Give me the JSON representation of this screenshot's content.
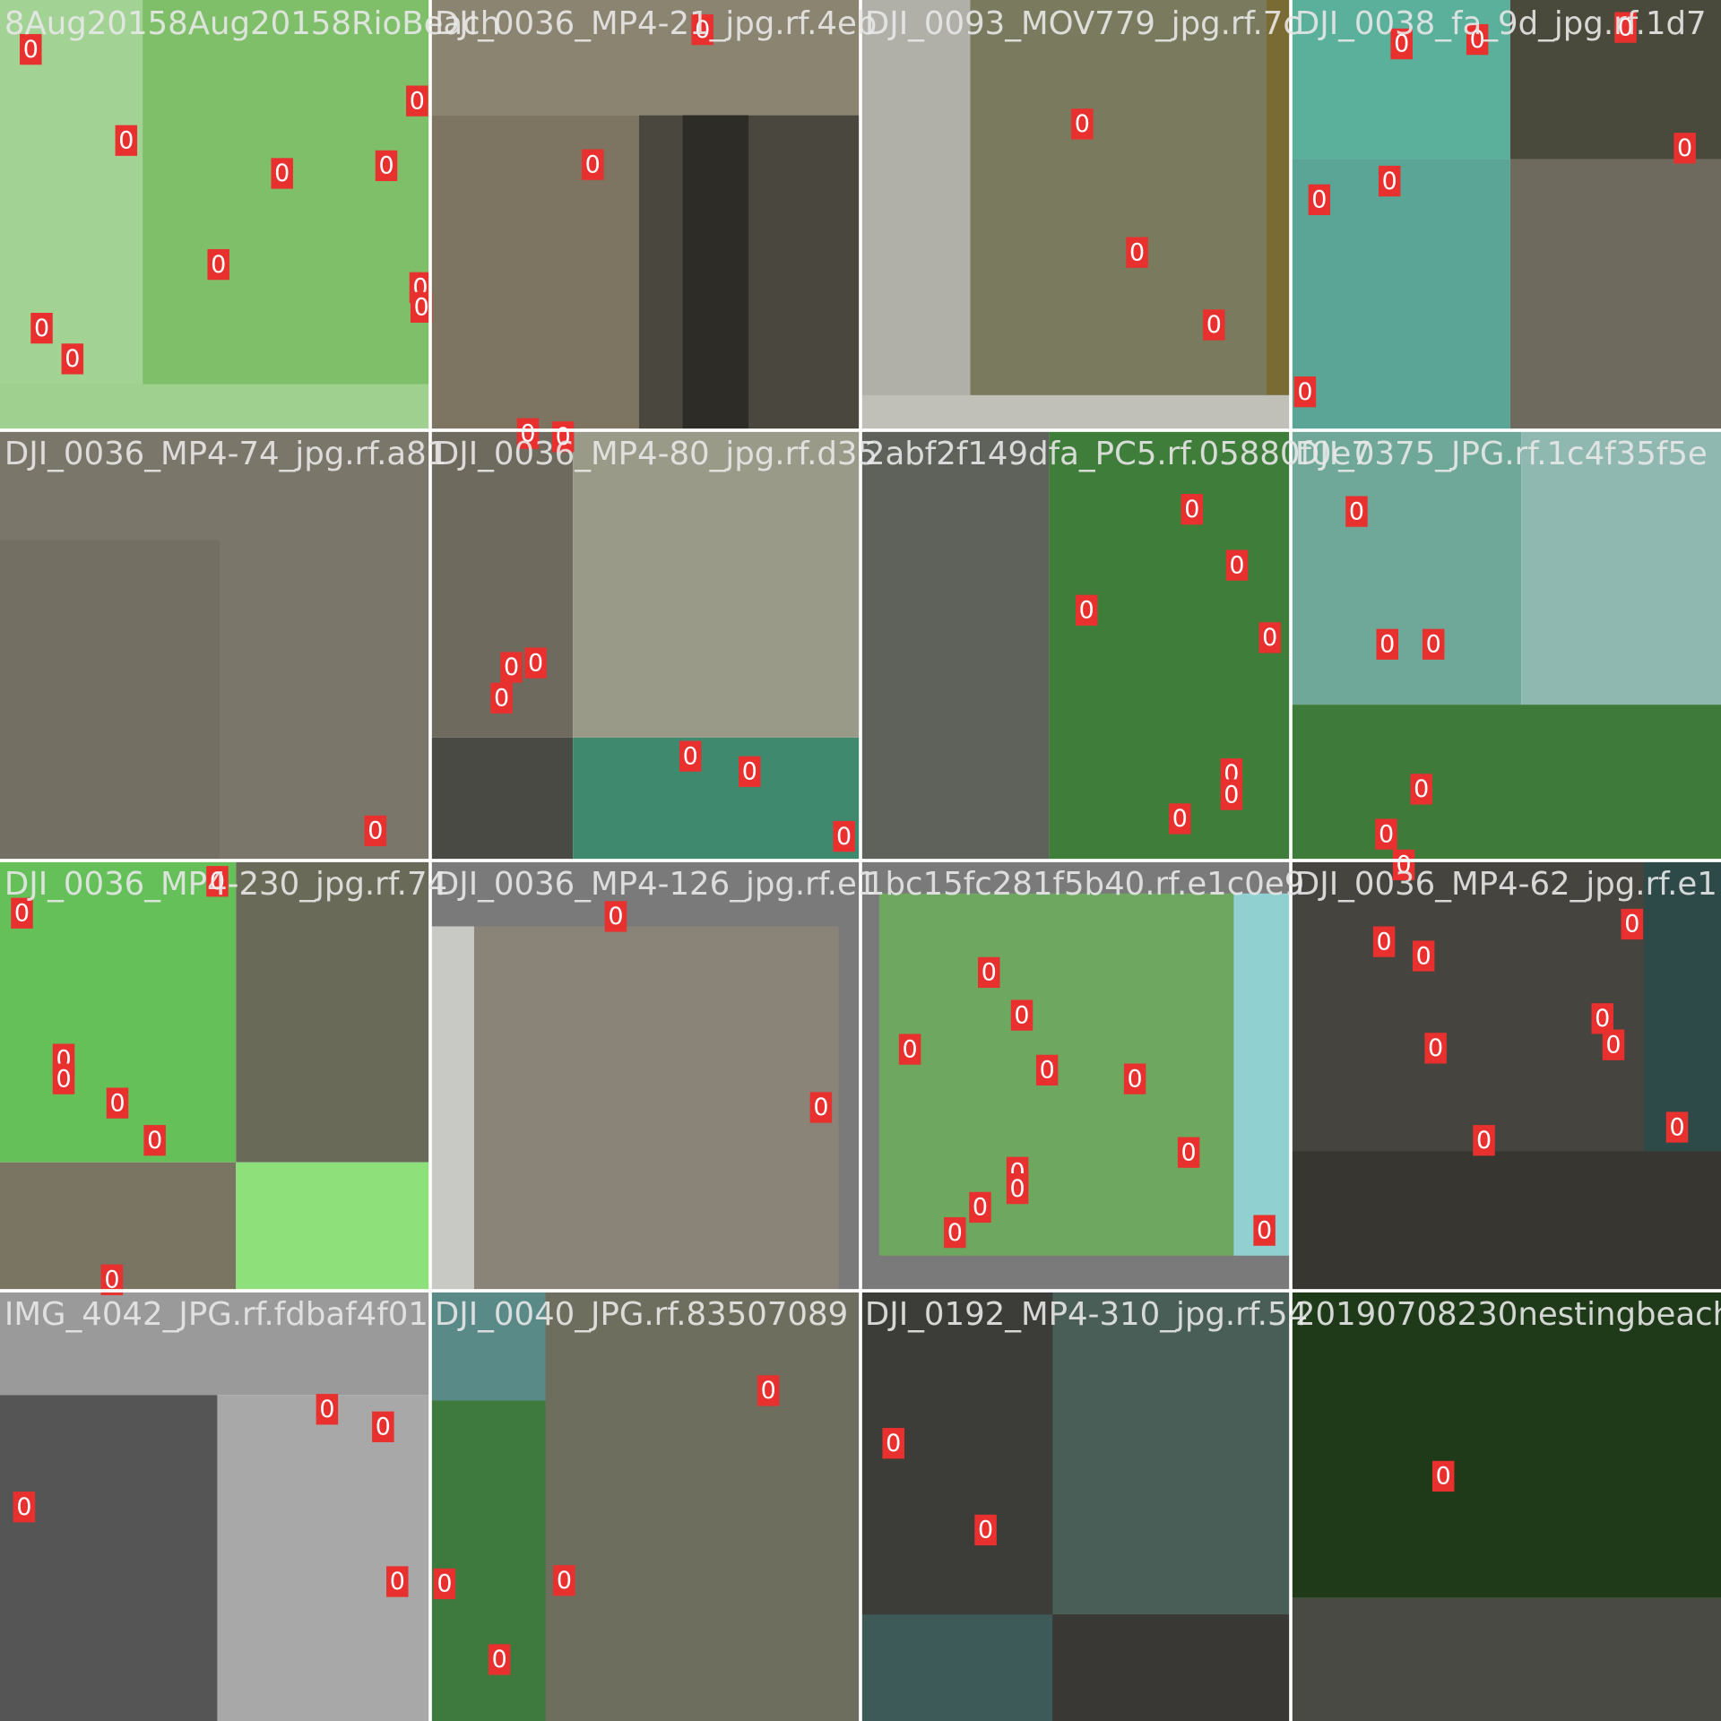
{
  "tiles": [
    {
      "filename": "8Aug20158Aug20158RioBeach",
      "labels": [
        "0",
        "0",
        "0",
        "0",
        "0",
        "0",
        "0",
        "0",
        "0",
        "0"
      ]
    },
    {
      "filename": "DJI_0036_MP4-21_jpg.rf.4eb",
      "labels": [
        "0",
        "0",
        "0",
        "0"
      ]
    },
    {
      "filename": "DJI_0093_MOV779_jpg.rf.7c",
      "labels": [
        "0",
        "0",
        "0"
      ]
    },
    {
      "filename": "DJI_0038_fa_9d_jpg.rf.1d7",
      "labels": [
        "0",
        "0",
        "0",
        "0",
        "0",
        "0",
        "0"
      ]
    },
    {
      "filename": "DJI_0036_MP4-74_jpg.rf.a81",
      "labels": [
        "0"
      ]
    },
    {
      "filename": "DJI_0036_MP4-80_jpg.rf.d35",
      "labels": [
        "0",
        "0",
        "0",
        "0",
        "0",
        "0"
      ]
    },
    {
      "filename": "2abf2f149dfa_PC5.rf.05880f0e7",
      "labels": [
        "0",
        "0",
        "0",
        "0",
        "0",
        "0",
        "0"
      ]
    },
    {
      "filename": "DJI_0375_JPG.rf.1c4f35f5e",
      "labels": [
        "0",
        "0",
        "0",
        "0",
        "0",
        "0"
      ]
    },
    {
      "filename": "DJI_0036_MP4-230_jpg.rf.74",
      "labels": [
        "0",
        "0",
        "0",
        "0",
        "0",
        "0",
        "0"
      ]
    },
    {
      "filename": "DJI_0036_MP4-126_jpg.rf.e1",
      "labels": [
        "0",
        "0"
      ]
    },
    {
      "filename": "1bc15fc281f5b40.rf.e1c0e9",
      "labels": [
        "0",
        "0",
        "0",
        "0",
        "0",
        "0",
        "0",
        "0",
        "0",
        "0",
        "0"
      ]
    },
    {
      "filename": "DJI_0036_MP4-62_jpg.rf.e1",
      "labels": [
        "0",
        "0",
        "0",
        "0",
        "0",
        "0",
        "0",
        "0"
      ]
    },
    {
      "filename": "IMG_4042_JPG.rf.fdbaf4f01",
      "labels": [
        "0",
        "0",
        "0",
        "0"
      ]
    },
    {
      "filename": "DJI_0040_JPG.rf.83507089",
      "labels": [
        "0",
        "0",
        "0",
        "0"
      ]
    },
    {
      "filename": "DJI_0192_MP4-310_jpg.rf.54",
      "labels": [
        "0",
        "0"
      ]
    },
    {
      "filename": "20190708230nestingbeach",
      "labels": [
        "0"
      ]
    }
  ]
}
